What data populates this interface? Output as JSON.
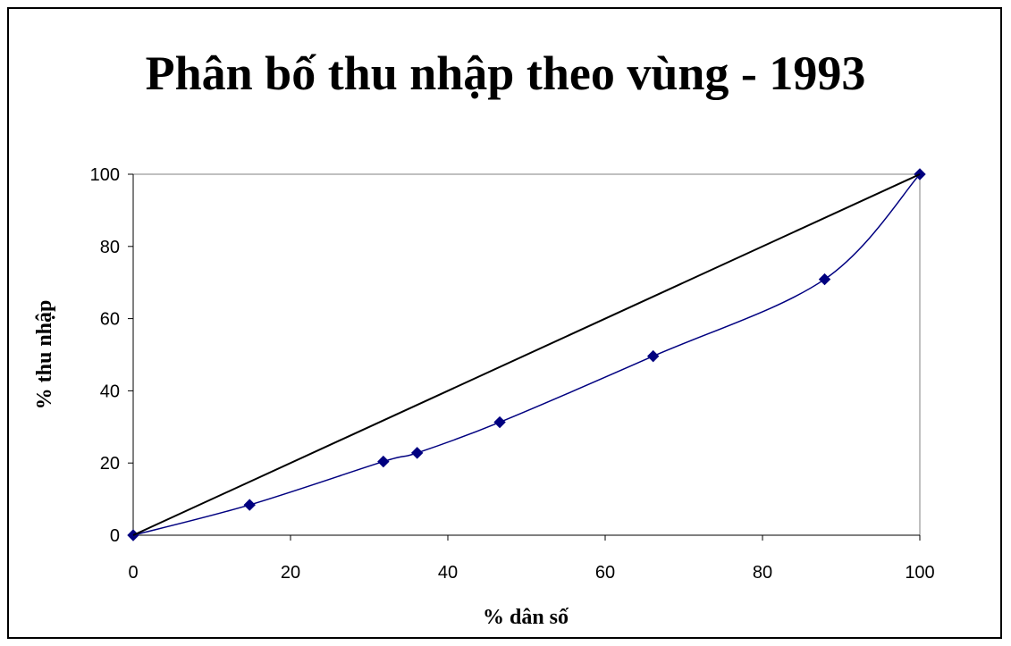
{
  "chart_data": {
    "type": "line",
    "title": "Phân bố thu nhập theo vùng - 1993",
    "xlabel": "% dân số",
    "ylabel": "% thu nhập",
    "xlim": [
      0,
      100
    ],
    "ylim": [
      0,
      100
    ],
    "xticks": [
      0,
      20,
      40,
      60,
      80,
      100
    ],
    "yticks": [
      0,
      20,
      40,
      60,
      80,
      100
    ],
    "grid": false,
    "legend": "none",
    "series": [
      {
        "color": "#000080",
        "markers": true,
        "x": [
          0,
          14.8,
          31.8,
          36.1,
          46.6,
          66.1,
          87.9,
          100
        ],
        "y": [
          0,
          8.4,
          20.4,
          22.8,
          31.3,
          49.6,
          70.9,
          100
        ]
      },
      {
        "color": "#000000",
        "markers": false,
        "x": [
          0,
          100
        ],
        "y": [
          0,
          100
        ]
      }
    ]
  }
}
